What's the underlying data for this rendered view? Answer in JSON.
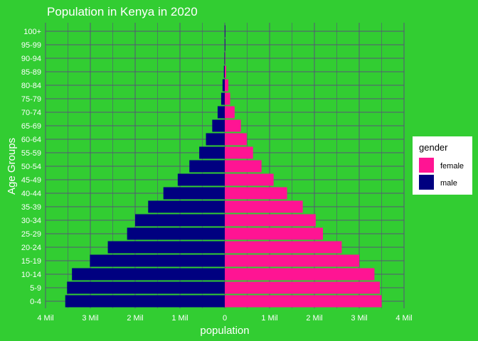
{
  "chart_data": {
    "type": "bar",
    "orientation": "horizontal",
    "title": "Population in Kenya in 2020",
    "xlabel": "population",
    "ylabel": "Age Groups",
    "categories": [
      "0-4",
      "5-9",
      "10-14",
      "15-19",
      "20-24",
      "25-29",
      "30-34",
      "35-39",
      "40-44",
      "45-49",
      "50-54",
      "55-59",
      "60-64",
      "65-69",
      "70-74",
      "75-79",
      "80-84",
      "85-89",
      "90-94",
      "95-99",
      "100+"
    ],
    "xlim": [
      -4000000,
      4000000
    ],
    "xticks": [
      -4000000,
      -3000000,
      -2000000,
      -1000000,
      0,
      1000000,
      2000000,
      3000000,
      4000000
    ],
    "xtick_labels": [
      "4 Mil",
      "3 Mil",
      "2 Mil",
      "1 Mil",
      "0",
      "1 Mil",
      "2 Mil",
      "3 Mil",
      "4 Mil"
    ],
    "series": [
      {
        "name": "female",
        "color": "#FF1493",
        "values": [
          3500000,
          3460000,
          3340000,
          3000000,
          2610000,
          2190000,
          2030000,
          1740000,
          1390000,
          1090000,
          820000,
          630000,
          490000,
          360000,
          220000,
          120000,
          80000,
          30000,
          10000,
          2000,
          1000
        ]
      },
      {
        "name": "male",
        "color": "#000080",
        "values": [
          -3560000,
          -3520000,
          -3410000,
          -3010000,
          -2610000,
          -2180000,
          -2000000,
          -1710000,
          -1370000,
          -1050000,
          -790000,
          -570000,
          -420000,
          -280000,
          -160000,
          -80000,
          -50000,
          -20000,
          -8000,
          -2000,
          -1000
        ]
      }
    ],
    "grid": true,
    "legend": {
      "title": "gender",
      "position": "right",
      "entries": [
        "female",
        "male"
      ]
    }
  },
  "colors": {
    "background": "#32CD32",
    "grid": "#555577",
    "text": "#FFFFFF",
    "female": "#FF1493",
    "male": "#000080"
  }
}
